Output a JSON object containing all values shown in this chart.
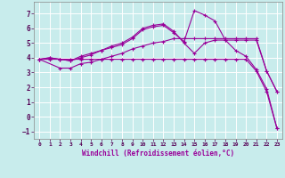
{
  "xlabel": "Windchill (Refroidissement éolien,°C)",
  "background_color": "#c8ecec",
  "line_color": "#990099",
  "grid_color": "#ffffff",
  "xlim": [
    -0.5,
    23.5
  ],
  "ylim": [
    -1.5,
    7.8
  ],
  "xticks": [
    0,
    1,
    2,
    3,
    4,
    5,
    6,
    7,
    8,
    9,
    10,
    11,
    12,
    13,
    14,
    15,
    16,
    17,
    18,
    19,
    20,
    21,
    22,
    23
  ],
  "yticks": [
    -1,
    0,
    1,
    2,
    3,
    4,
    5,
    6,
    7
  ],
  "lines": [
    {
      "x": [
        0,
        1,
        2,
        3,
        4,
        5,
        6,
        7,
        8,
        9,
        10,
        11,
        12,
        13,
        14,
        15,
        16,
        17,
        18,
        19,
        20,
        21,
        22,
        23
      ],
      "y": [
        3.9,
        3.9,
        3.9,
        3.9,
        3.9,
        3.9,
        3.9,
        3.9,
        3.9,
        3.9,
        3.9,
        3.9,
        3.9,
        3.9,
        3.9,
        3.9,
        3.9,
        3.9,
        3.9,
        3.9,
        3.9,
        3.1,
        1.7,
        -0.8
      ]
    },
    {
      "x": [
        0,
        1,
        2,
        3,
        4,
        5,
        6,
        7,
        8,
        9,
        10,
        11,
        12,
        13,
        14,
        15,
        16,
        17,
        18,
        19,
        20,
        21,
        22,
        23
      ],
      "y": [
        3.9,
        4.0,
        3.9,
        3.8,
        4.1,
        4.3,
        4.5,
        4.8,
        5.0,
        5.4,
        6.0,
        6.2,
        6.3,
        5.8,
        5.0,
        4.3,
        5.0,
        5.2,
        5.2,
        5.2,
        5.2,
        5.2,
        3.1,
        1.7
      ]
    },
    {
      "x": [
        0,
        1,
        2,
        3,
        4,
        5,
        6,
        7,
        8,
        9,
        10,
        11,
        12,
        13,
        14,
        15,
        16,
        17,
        18,
        19,
        20,
        21,
        22,
        23
      ],
      "y": [
        3.9,
        4.0,
        3.9,
        3.8,
        4.0,
        4.2,
        4.5,
        4.7,
        4.9,
        5.3,
        5.9,
        6.1,
        6.2,
        5.7,
        5.1,
        7.2,
        6.9,
        6.5,
        5.2,
        4.5,
        4.1,
        3.2,
        1.9,
        -0.8
      ]
    },
    {
      "x": [
        0,
        2,
        3,
        4,
        5,
        6,
        7,
        8,
        9,
        10,
        11,
        12,
        13,
        14,
        15,
        16,
        17,
        18,
        19,
        20,
        21,
        22,
        23
      ],
      "y": [
        3.9,
        3.3,
        3.3,
        3.6,
        3.7,
        3.9,
        4.1,
        4.3,
        4.6,
        4.8,
        5.0,
        5.1,
        5.3,
        5.3,
        5.3,
        5.3,
        5.3,
        5.3,
        5.3,
        5.3,
        5.3,
        3.1,
        1.7
      ]
    }
  ]
}
